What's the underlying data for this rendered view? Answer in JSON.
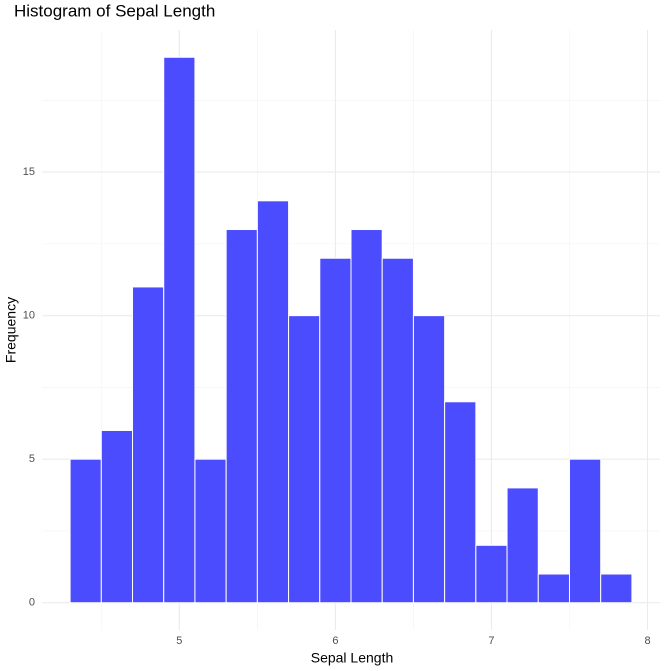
{
  "chart_data": {
    "type": "histogram",
    "title": "Histogram of Sepal Length",
    "x_label": "Sepal Length",
    "y_label": "Frequency",
    "bins": [
      4.3,
      4.5,
      4.7,
      4.9,
      5.1,
      5.3,
      5.5,
      5.7,
      5.9,
      6.1,
      6.3,
      6.5,
      6.7,
      6.9,
      7.1,
      7.3,
      7.5,
      7.7,
      7.9
    ],
    "values": [
      5,
      6,
      11,
      19,
      5,
      13,
      14,
      10,
      12,
      13,
      12,
      10,
      7,
      2,
      4,
      1,
      5,
      1
    ],
    "color": "#4c4cff",
    "edge_color": "#ffffff",
    "xlim": [
      4.12,
      8.08
    ],
    "xticks": [
      5,
      6,
      7,
      8
    ],
    "ylim": [
      -0.95,
      19.95
    ],
    "yticks": [
      0,
      5,
      10,
      15
    ],
    "grid": true
  }
}
